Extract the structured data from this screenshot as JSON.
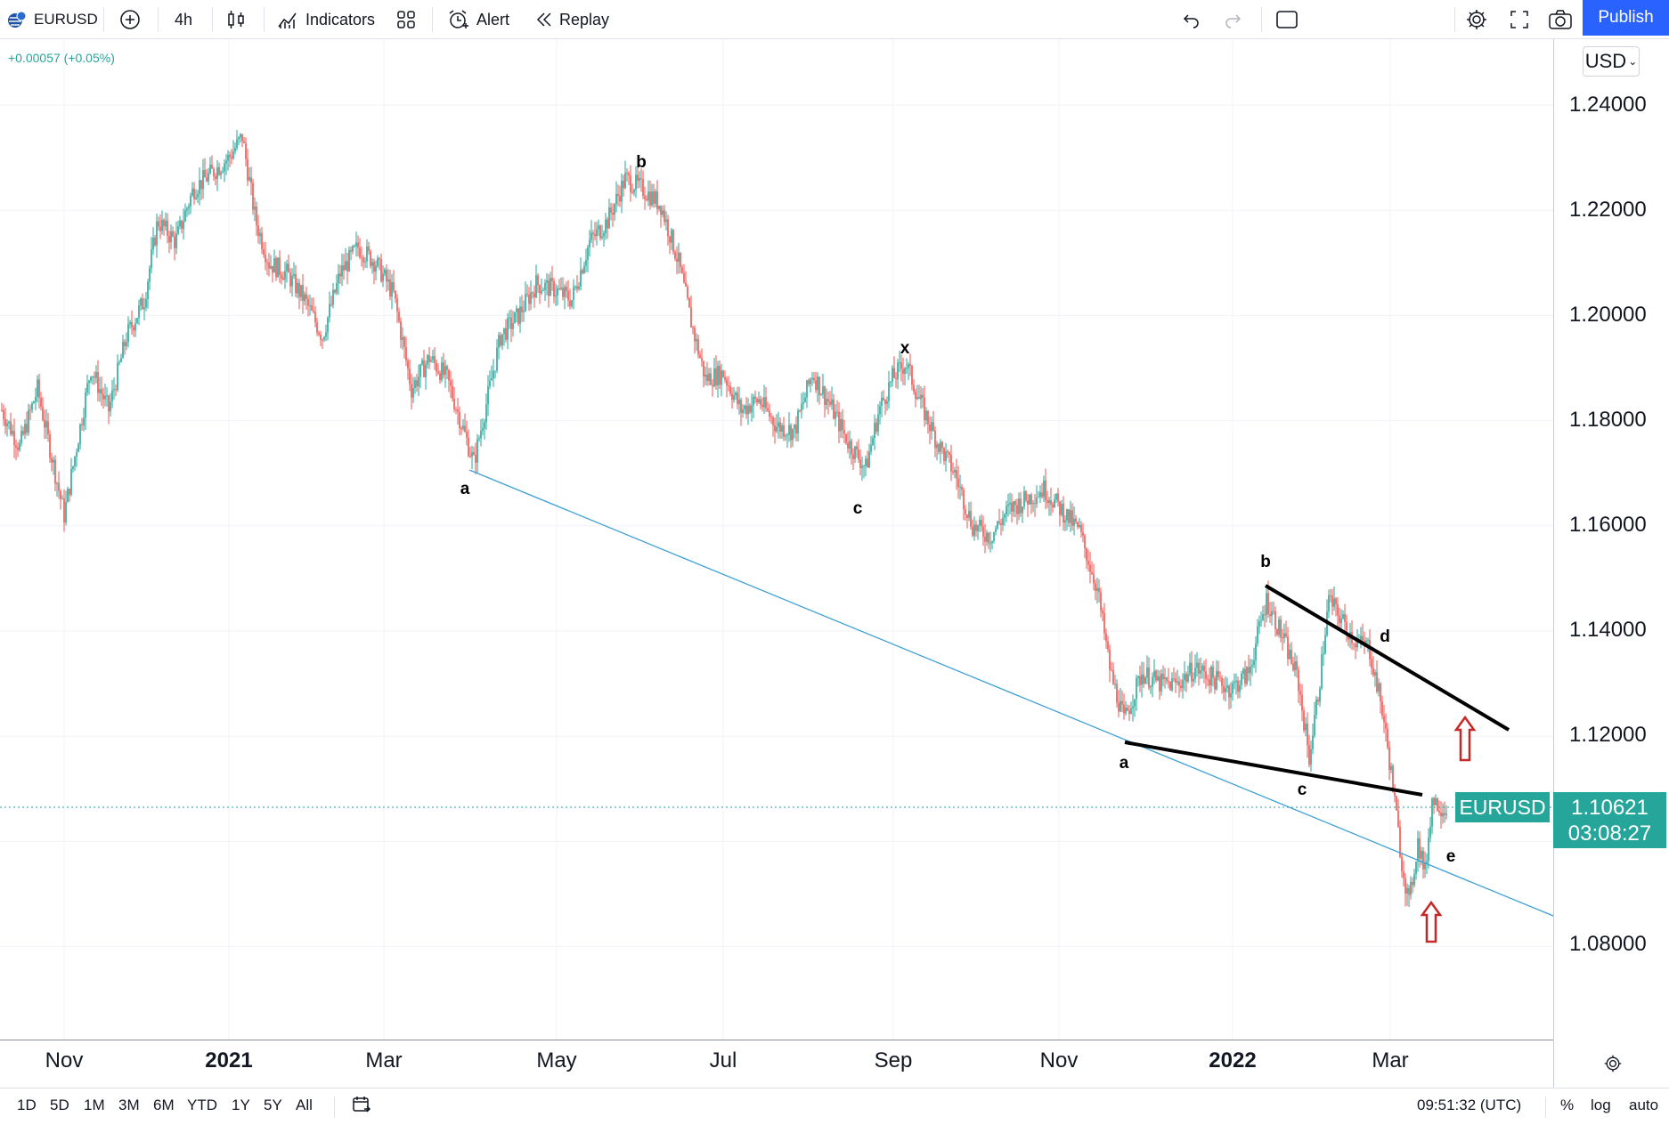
{
  "toolbar": {
    "symbol": "EURUSD",
    "interval": "4h",
    "indicators_label": "Indicators",
    "alert_label": "Alert",
    "replay_label": "Replay",
    "publish_label": "Publish"
  },
  "legend": {
    "change": "+0.00057 (+0.05%)"
  },
  "currency_selector": "USD",
  "price_axis": {
    "ticks": [
      "1.24000",
      "1.22000",
      "1.20000",
      "1.18000",
      "1.16000",
      "1.14000",
      "1.12000",
      "1.08000"
    ]
  },
  "time_axis": {
    "ticks": [
      "Nov",
      "2021",
      "Mar",
      "May",
      "Jul",
      "Sep",
      "Nov",
      "2022",
      "Mar"
    ]
  },
  "current_price": {
    "symbol": "EURUSD",
    "price": "1.10621",
    "countdown": "03:08:27"
  },
  "wave_labels": [
    "a",
    "b",
    "c",
    "x",
    "a",
    "b",
    "c",
    "d",
    "e"
  ],
  "bottom": {
    "ranges": [
      "1D",
      "5D",
      "1M",
      "3M",
      "6M",
      "YTD",
      "1Y",
      "5Y",
      "All"
    ],
    "time": "09:51:32 (UTC)",
    "percent": "%",
    "log": "log",
    "auto": "auto"
  },
  "colors": {
    "up": "#26a69a",
    "down": "#ef5350",
    "accent": "#2962ff",
    "trendline": "#3fa0d6",
    "arrow": "#c62828"
  },
  "icons": [
    "globe-flag-icon",
    "plus-circle-icon",
    "candles-icon",
    "indicators-icon",
    "layout-grid-icon",
    "alarm-icon",
    "replay-icon",
    "undo-icon",
    "redo-icon",
    "rectangle-icon",
    "gear-icon",
    "fullscreen-icon",
    "camera-icon",
    "calendar-icon"
  ],
  "chart_data": {
    "type": "line",
    "symbol": "EURUSD",
    "interval": "4h",
    "ylim": [
      1.06,
      1.25
    ],
    "y_ticks": [
      1.24,
      1.22,
      1.2,
      1.18,
      1.16,
      1.14,
      1.12,
      1.08
    ],
    "x_ticks": [
      "Nov",
      "2021",
      "Mar",
      "May",
      "Jul",
      "Sep",
      "Nov",
      "2022",
      "Mar"
    ],
    "last_price": 1.10621,
    "series": [
      {
        "values": [
          [
            0,
            1.182
          ],
          [
            20,
            1.175
          ],
          [
            40,
            1.186
          ],
          [
            60,
            1.17
          ],
          [
            70,
            1.162
          ],
          [
            85,
            1.176
          ],
          [
            100,
            1.19
          ],
          [
            120,
            1.182
          ],
          [
            140,
            1.196
          ],
          [
            160,
            1.203
          ],
          [
            175,
            1.218
          ],
          [
            195,
            1.214
          ],
          [
            215,
            1.224
          ],
          [
            235,
            1.227
          ],
          [
            255,
            1.23
          ],
          [
            270,
            1.234
          ],
          [
            285,
            1.218
          ],
          [
            300,
            1.21
          ],
          [
            320,
            1.208
          ],
          [
            340,
            1.203
          ],
          [
            360,
            1.196
          ],
          [
            380,
            1.208
          ],
          [
            400,
            1.213
          ],
          [
            420,
            1.21
          ],
          [
            440,
            1.204
          ],
          [
            460,
            1.186
          ],
          [
            480,
            1.192
          ],
          [
            500,
            1.188
          ],
          [
            515,
            1.18
          ],
          [
            530,
            1.172
          ],
          [
            545,
            1.184
          ],
          [
            560,
            1.196
          ],
          [
            580,
            1.2
          ],
          [
            600,
            1.206
          ],
          [
            620,
            1.205
          ],
          [
            640,
            1.203
          ],
          [
            660,
            1.214
          ],
          [
            680,
            1.218
          ],
          [
            700,
            1.226
          ],
          [
            720,
            1.224
          ],
          [
            740,
            1.221
          ],
          [
            760,
            1.21
          ],
          [
            775,
            1.198
          ],
          [
            790,
            1.188
          ],
          [
            810,
            1.189
          ],
          [
            830,
            1.182
          ],
          [
            850,
            1.184
          ],
          [
            870,
            1.179
          ],
          [
            890,
            1.178
          ],
          [
            910,
            1.189
          ],
          [
            930,
            1.183
          ],
          [
            950,
            1.176
          ],
          [
            970,
            1.171
          ],
          [
            985,
            1.182
          ],
          [
            1000,
            1.188
          ],
          [
            1015,
            1.191
          ],
          [
            1030,
            1.184
          ],
          [
            1050,
            1.176
          ],
          [
            1070,
            1.17
          ],
          [
            1090,
            1.16
          ],
          [
            1110,
            1.158
          ],
          [
            1130,
            1.163
          ],
          [
            1150,
            1.165
          ],
          [
            1170,
            1.167
          ],
          [
            1190,
            1.163
          ],
          [
            1210,
            1.159
          ],
          [
            1230,
            1.148
          ],
          [
            1245,
            1.132
          ],
          [
            1260,
            1.123
          ],
          [
            1280,
            1.132
          ],
          [
            1300,
            1.13
          ],
          [
            1320,
            1.13
          ],
          [
            1340,
            1.133
          ],
          [
            1360,
            1.131
          ],
          [
            1380,
            1.129
          ],
          [
            1400,
            1.132
          ],
          [
            1420,
            1.146
          ],
          [
            1440,
            1.138
          ],
          [
            1455,
            1.131
          ],
          [
            1468,
            1.116
          ],
          [
            1478,
            1.128
          ],
          [
            1490,
            1.146
          ],
          [
            1505,
            1.142
          ],
          [
            1520,
            1.138
          ],
          [
            1535,
            1.137
          ],
          [
            1550,
            1.125
          ],
          [
            1560,
            1.113
          ],
          [
            1572,
            1.096
          ],
          [
            1580,
            1.088
          ],
          [
            1590,
            1.1
          ],
          [
            1598,
            1.094
          ],
          [
            1606,
            1.108
          ],
          [
            1614,
            1.107
          ],
          [
            1622,
            1.106
          ]
        ]
      }
    ]
  }
}
